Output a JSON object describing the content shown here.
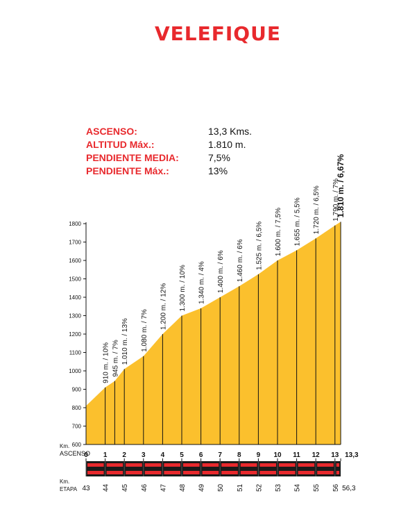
{
  "title": "VELEFIQUE",
  "stats": [
    {
      "label": "ASCENSO:",
      "value": "13,3 Kms."
    },
    {
      "label": "ALTITUD Máx.:",
      "value": "1.810 m."
    },
    {
      "label": "PENDIENTE MEDIA:",
      "value": "7,5%"
    },
    {
      "label": "PENDIENTE Máx.:",
      "value": "13%"
    }
  ],
  "colors": {
    "fill": "#fbc02d",
    "accent": "#e8292d",
    "text": "#111111"
  },
  "chart_data": {
    "type": "area",
    "ylim": [
      600,
      1800
    ],
    "y_ticks": [
      600,
      700,
      800,
      900,
      1000,
      1100,
      1200,
      1300,
      1400,
      1500,
      1600,
      1700,
      1800
    ],
    "x_axis_label": [
      "Km.",
      "ASCENSO"
    ],
    "x_ticks": [
      "0",
      "1",
      "2",
      "3",
      "4",
      "5",
      "6",
      "7",
      "8",
      "9",
      "10",
      "11",
      "12",
      "13",
      "13,3"
    ],
    "etapa_label": [
      "Km.",
      "ETAPA"
    ],
    "etapa_ticks": [
      "43",
      "44",
      "45",
      "46",
      "47",
      "48",
      "49",
      "50",
      "51",
      "52",
      "53",
      "54",
      "55",
      "56",
      "56,3"
    ],
    "x": [
      0,
      1,
      1.5,
      2,
      3,
      4,
      5,
      6,
      7,
      8,
      9,
      10,
      11,
      12,
      13,
      13.3
    ],
    "y": [
      810,
      910,
      945,
      1010,
      1080,
      1200,
      1300,
      1340,
      1400,
      1460,
      1525,
      1600,
      1655,
      1720,
      1790,
      1810
    ],
    "annotations": [
      {
        "x": 1,
        "y": 910,
        "text": "910 m. / 10%"
      },
      {
        "x": 1.5,
        "y": 945,
        "text": "945 m. / 7%"
      },
      {
        "x": 2,
        "y": 1010,
        "text": "1.010 m. / 13%"
      },
      {
        "x": 3,
        "y": 1080,
        "text": "1.080 m. / 7%"
      },
      {
        "x": 4,
        "y": 1200,
        "text": "1.200 m. / 12%"
      },
      {
        "x": 5,
        "y": 1300,
        "text": "1.300 m. / 10%"
      },
      {
        "x": 6,
        "y": 1340,
        "text": "1.340 m. / 4%"
      },
      {
        "x": 7,
        "y": 1400,
        "text": "1.400 m. / 6%"
      },
      {
        "x": 8,
        "y": 1460,
        "text": "1.460 m. / 6%"
      },
      {
        "x": 9,
        "y": 1525,
        "text": "1.525 m. / 6,5%"
      },
      {
        "x": 10,
        "y": 1600,
        "text": "1.600 m. / 7,5%"
      },
      {
        "x": 11,
        "y": 1655,
        "text": "1.655 m. / 5,5%"
      },
      {
        "x": 12,
        "y": 1720,
        "text": "1.720 m. / 6,5%"
      },
      {
        "x": 13,
        "y": 1790,
        "text": "1.790 m. / 7%"
      },
      {
        "x": 13.3,
        "y": 1810,
        "text": "1.810 m. / 6,67%",
        "big": true
      }
    ]
  }
}
